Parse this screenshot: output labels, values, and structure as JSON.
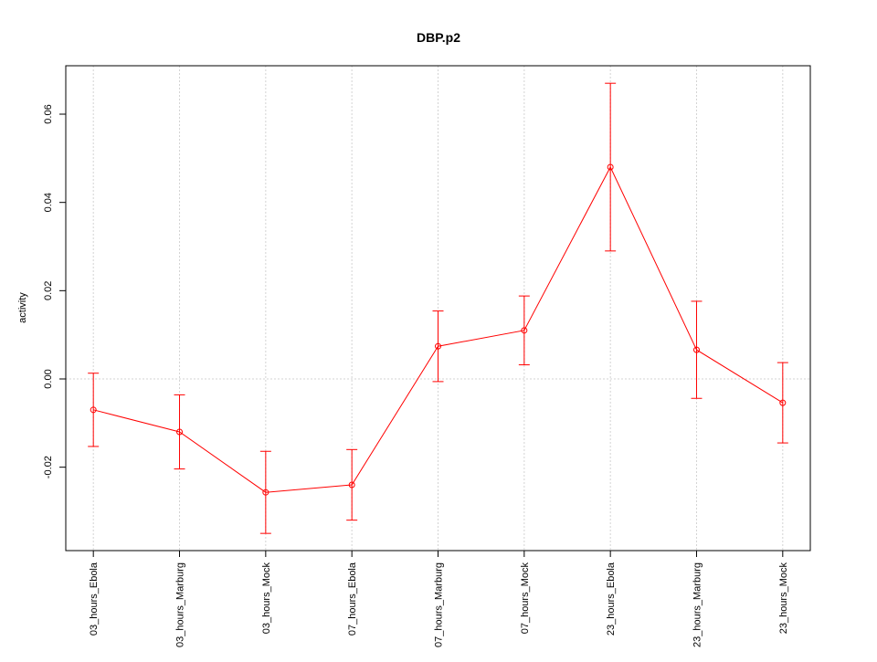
{
  "chart_data": {
    "type": "line",
    "title": "DBP.p2",
    "y_label": "activity",
    "categories": [
      "03_hours_Ebola",
      "03_hours_Marburg",
      "03_hours_Mock",
      "07_hours_Ebola",
      "07_hours_Marburg",
      "07_hours_Mock",
      "23_hours_Ebola",
      "23_hours_Marburg",
      "23_hours_Mock"
    ],
    "values": [
      -0.007,
      -0.012,
      -0.0257,
      -0.024,
      0.0074,
      0.011,
      0.048,
      0.0066,
      -0.0054
    ],
    "error": [
      0.0083,
      0.0084,
      0.0093,
      0.008,
      0.008,
      0.0078,
      0.019,
      0.011,
      0.0091
    ],
    "color": "#ff0000",
    "ylim": [
      -0.0389,
      0.07097
    ],
    "yticks": [
      -0.02,
      {
        "value": 0,
        "label": "0.00"
      },
      0.02,
      0.04,
      0.06
    ],
    "grid": "x",
    "reference_line": 0
  }
}
